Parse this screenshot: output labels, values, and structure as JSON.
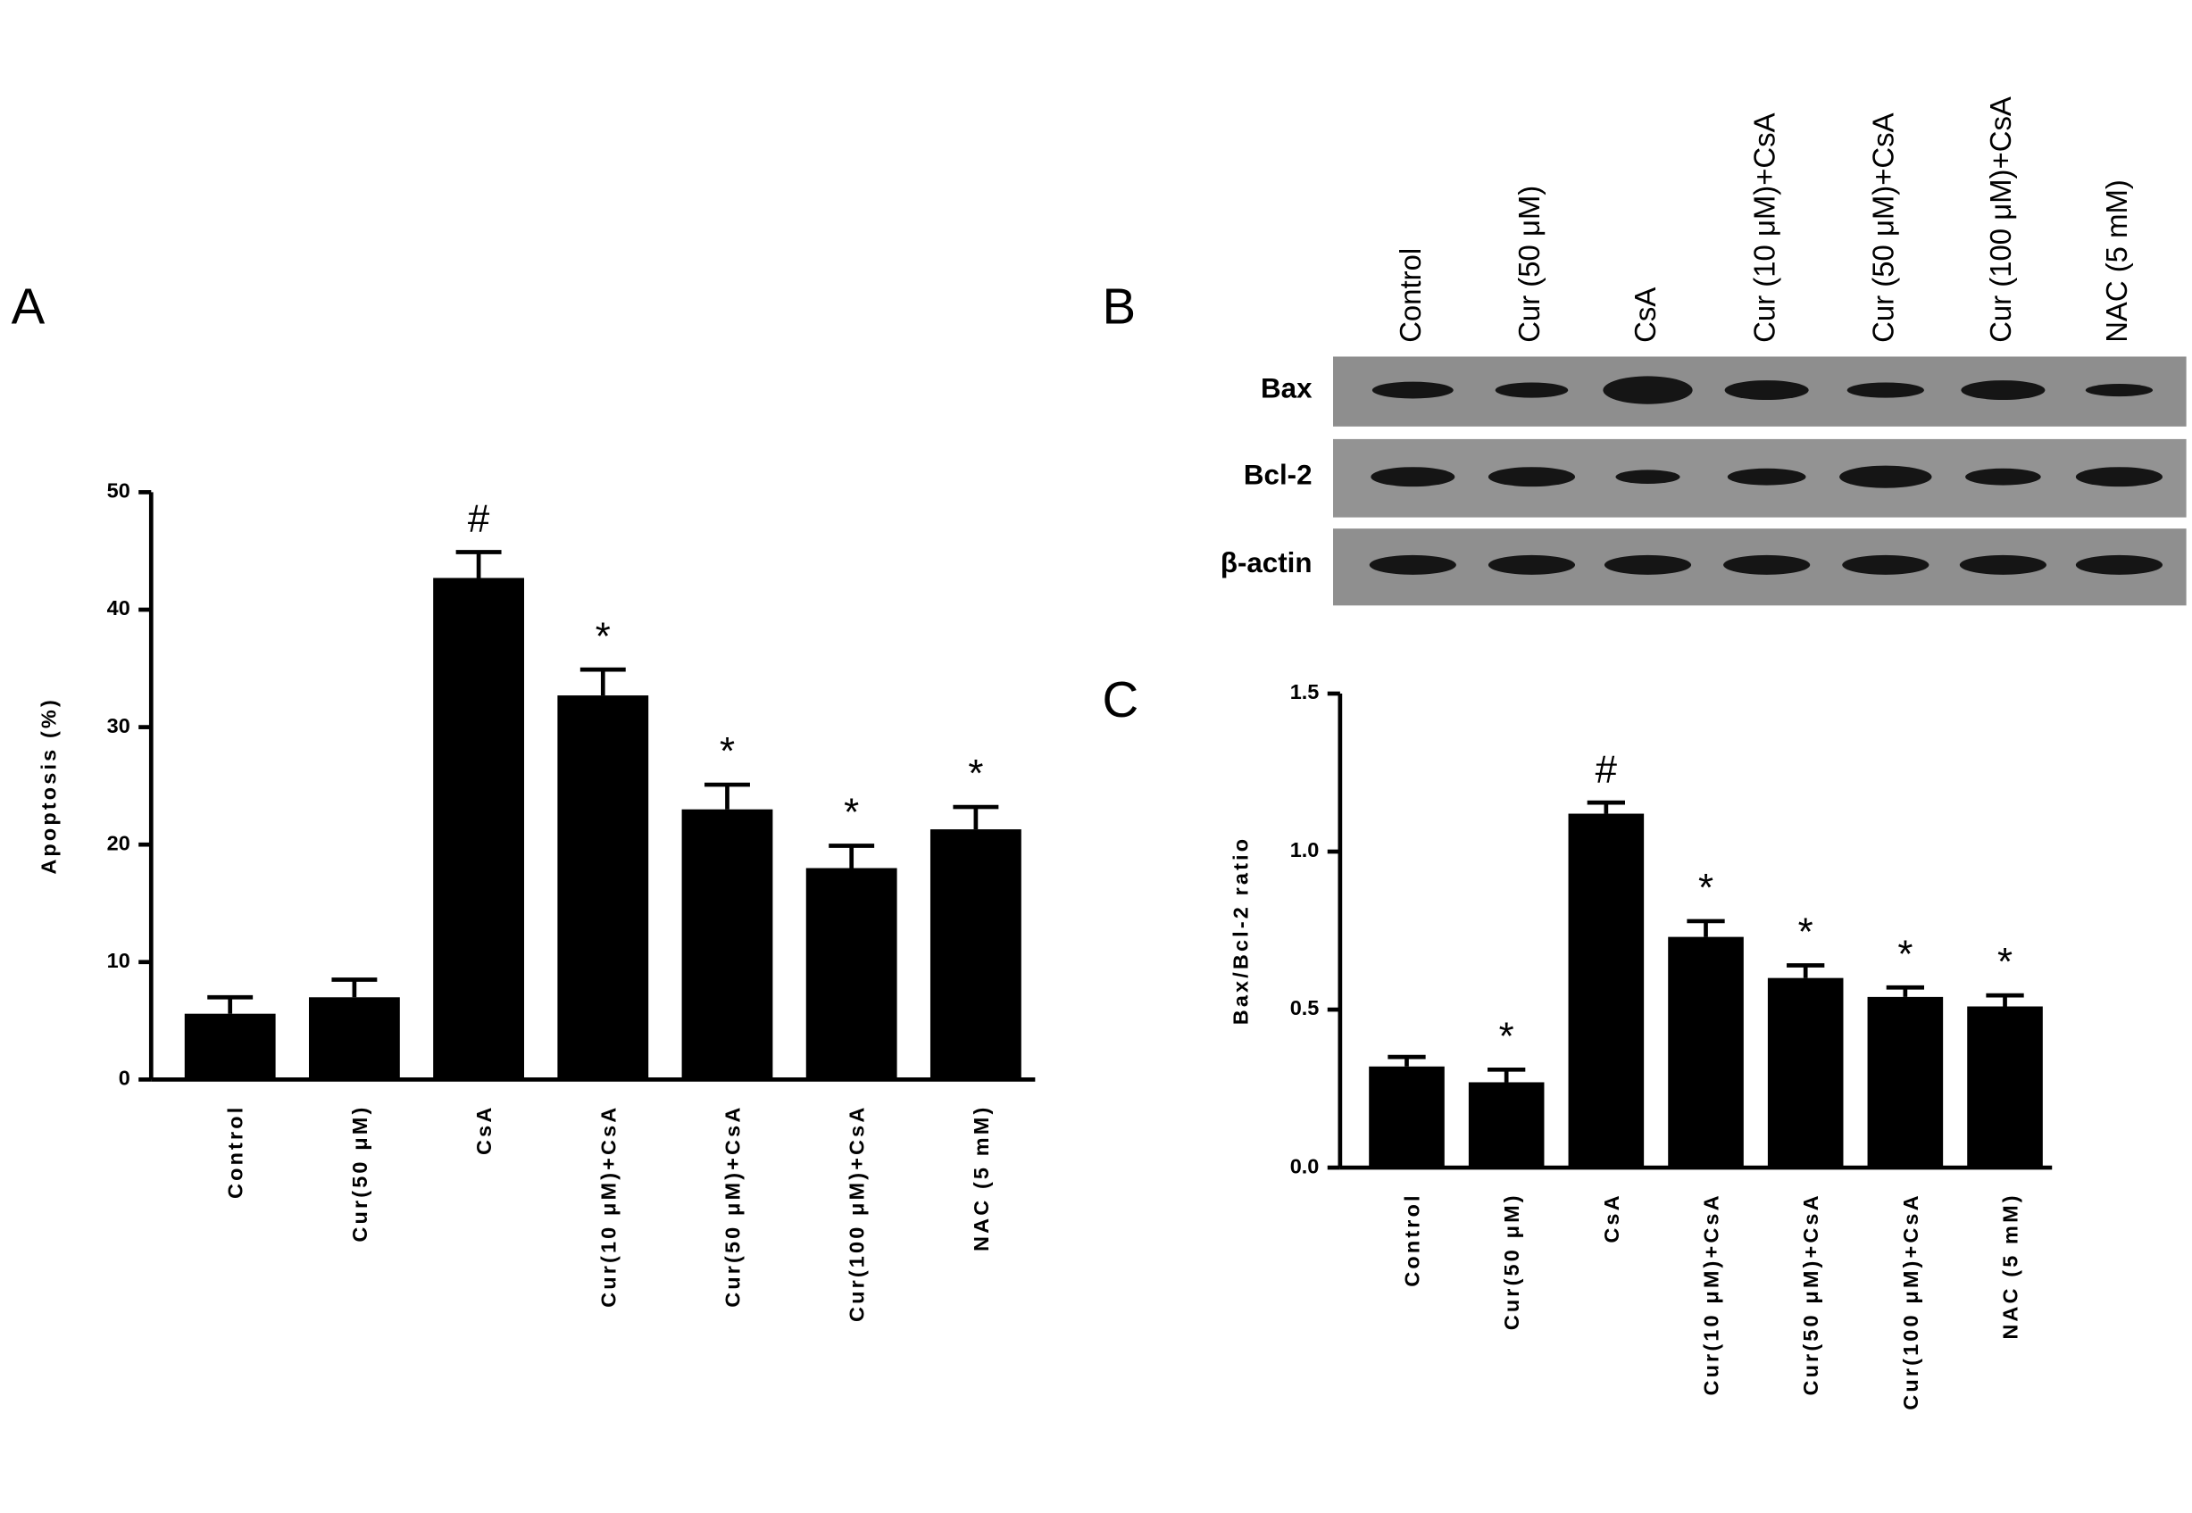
{
  "panel_labels": [
    "A",
    "B",
    "C"
  ],
  "blot": {
    "lanes": [
      "Control",
      "Cur (50 μM)",
      "CsA",
      "Cur (10 μM)+CsA",
      "Cur (50 μM)+CsA",
      "Cur (100 μM)+CsA",
      "NAC (5 mM)"
    ],
    "rows": [
      "Bax",
      "Bcl-2",
      "β-actin"
    ]
  },
  "chart_data": [
    {
      "type": "bar",
      "y_label": "Apoptosis (%)",
      "categories": [
        "Control",
        "Cur(50 μM)",
        "CsA",
        "Cur(10 μM)+CsA",
        "Cur(50 μM)+CsA",
        "Cur(100 μM)+CsA",
        "NAC (5 mM)"
      ],
      "values": [
        5.6,
        7.0,
        42.7,
        32.7,
        23.0,
        18.0,
        21.3
      ],
      "errors": [
        1.4,
        1.5,
        2.2,
        2.2,
        2.1,
        1.9,
        1.9
      ],
      "annotations": [
        null,
        null,
        "#",
        "*",
        "*",
        "*",
        "*"
      ],
      "color": "#000000",
      "ylim": [
        0,
        50
      ],
      "yticks": [
        0,
        10,
        20,
        30,
        40,
        50
      ]
    },
    {
      "type": "bar",
      "y_label": "Bax/Bcl-2 ratio",
      "categories": [
        "Control",
        "Cur(50 μM)",
        "CsA",
        "Cur(10 μM)+CsA",
        "Cur(50 μM)+CsA",
        "Cur(100 μM)+CsA",
        "NAC (5 mM)"
      ],
      "values": [
        0.32,
        0.27,
        1.12,
        0.73,
        0.6,
        0.54,
        0.51
      ],
      "errors": [
        0.03,
        0.04,
        0.035,
        0.05,
        0.04,
        0.03,
        0.035
      ],
      "annotations": [
        null,
        "*",
        "#",
        "*",
        "*",
        "*",
        "*"
      ],
      "color": "#000000",
      "ylim": [
        0,
        1.5
      ],
      "yticks": [
        {
          "value": 0,
          "label": "0.0"
        },
        0.5,
        {
          "value": 1,
          "label": "1.0"
        },
        1.5
      ]
    }
  ]
}
